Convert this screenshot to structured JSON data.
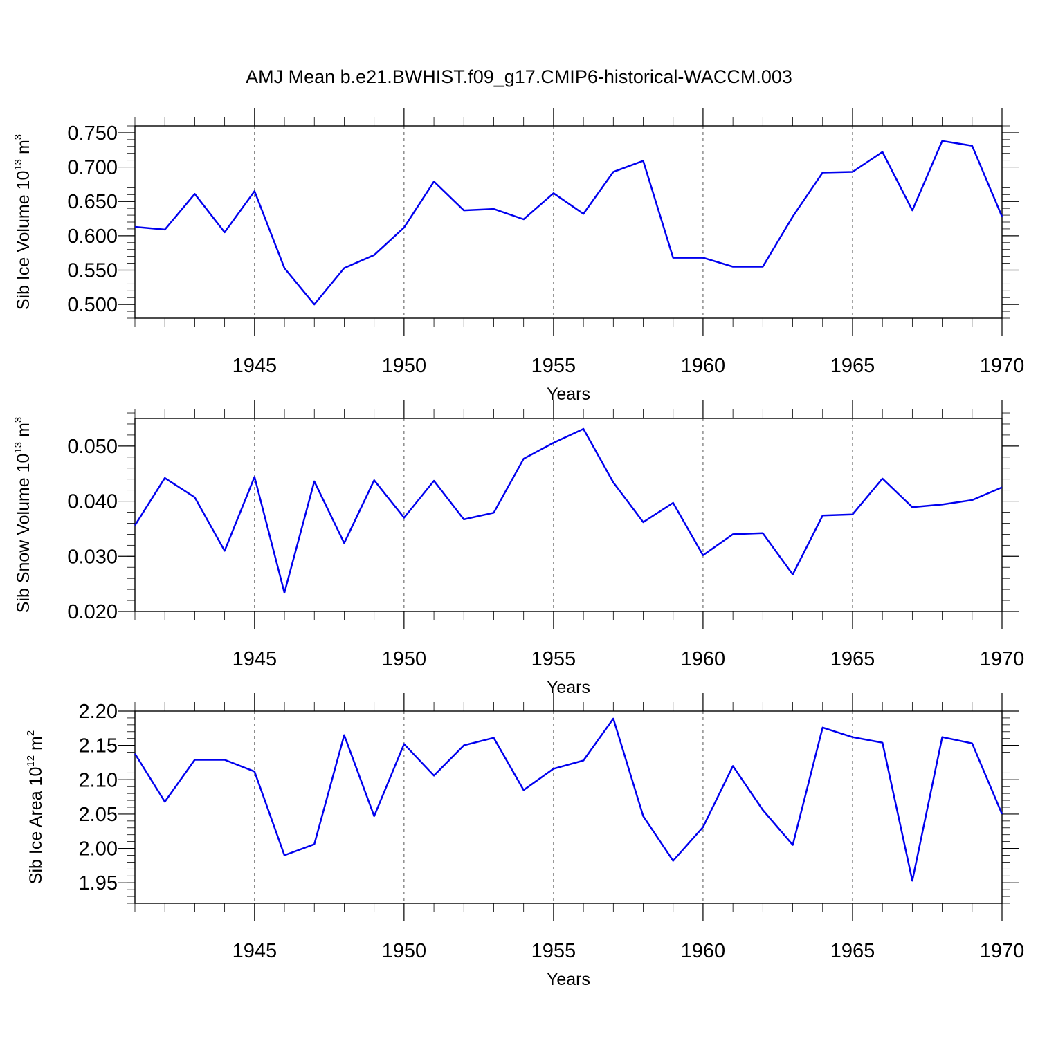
{
  "title": "AMJ Mean b.e21.BWHIST.f09_g17.CMIP6-historical-WACCM.003",
  "colors": {
    "series": "#0000ee",
    "grid": "#555555",
    "axes": "#000000"
  },
  "chart_data": [
    {
      "type": "line",
      "xlabel": "Years",
      "ylabel": {
        "text": "Sib Ice Volume 10",
        "exponent": "13",
        "unit": " m",
        "unit_exponent": "3"
      },
      "xlim": [
        1941,
        1970
      ],
      "ylim": [
        0.48,
        0.76
      ],
      "x_ticks": [
        1945,
        1950,
        1955,
        1960,
        1965,
        1970
      ],
      "x_tick_labels": [
        "1945",
        "1950",
        "1955",
        "1960",
        "1965",
        "1970"
      ],
      "y_ticks": [
        0.5,
        0.55,
        0.6,
        0.65,
        0.7,
        0.75
      ],
      "y_tick_labels": [
        "0.500",
        "0.550",
        "0.600",
        "0.650",
        "0.700",
        "0.750"
      ],
      "y_minor_step": 0.01,
      "grid": "vertical-dashed-at-major-x-ticks",
      "x": [
        1941,
        1942,
        1943,
        1944,
        1945,
        1946,
        1947,
        1948,
        1949,
        1950,
        1951,
        1952,
        1953,
        1954,
        1955,
        1956,
        1957,
        1958,
        1959,
        1960,
        1961,
        1962,
        1963,
        1964,
        1965,
        1966,
        1967,
        1968,
        1969,
        1970
      ],
      "values": [
        0.613,
        0.609,
        0.661,
        0.605,
        0.665,
        0.553,
        0.5,
        0.553,
        0.572,
        0.612,
        0.679,
        0.637,
        0.639,
        0.624,
        0.662,
        0.632,
        0.693,
        0.709,
        0.568,
        0.568,
        0.555,
        0.555,
        0.628,
        0.692,
        0.693,
        0.722,
        0.637,
        0.738,
        0.731,
        0.628
      ]
    },
    {
      "type": "line",
      "xlabel": "Years",
      "ylabel": {
        "text": "Sib Snow Volume 10",
        "exponent": "13",
        "unit": " m",
        "unit_exponent": "3"
      },
      "xlim": [
        1941,
        1970
      ],
      "ylim": [
        0.02,
        0.055
      ],
      "x_ticks": [
        1945,
        1950,
        1955,
        1960,
        1965,
        1970
      ],
      "x_tick_labels": [
        "1945",
        "1950",
        "1955",
        "1960",
        "1965",
        "1970"
      ],
      "y_ticks": [
        0.02,
        0.03,
        0.04,
        0.05
      ],
      "y_tick_labels": [
        "0.020",
        "0.030",
        "0.040",
        "0.050"
      ],
      "y_minor_step": 0.002,
      "grid": "vertical-dashed-at-major-x-ticks",
      "x": [
        1941,
        1942,
        1943,
        1944,
        1945,
        1946,
        1947,
        1948,
        1949,
        1950,
        1951,
        1952,
        1953,
        1954,
        1955,
        1956,
        1957,
        1958,
        1959,
        1960,
        1961,
        1962,
        1963,
        1964,
        1965,
        1966,
        1967,
        1968,
        1969,
        1970
      ],
      "values": [
        0.0356,
        0.0442,
        0.0407,
        0.031,
        0.0444,
        0.0234,
        0.0436,
        0.0324,
        0.0438,
        0.037,
        0.0437,
        0.0367,
        0.0379,
        0.0477,
        0.0506,
        0.0531,
        0.0434,
        0.0362,
        0.0397,
        0.0302,
        0.034,
        0.0342,
        0.0267,
        0.0374,
        0.0376,
        0.0441,
        0.0389,
        0.0394,
        0.0402,
        0.0425
      ]
    },
    {
      "type": "line",
      "xlabel": "Years",
      "ylabel": {
        "text": "Sib Ice Area 10",
        "exponent": "12",
        "unit": " m",
        "unit_exponent": "2"
      },
      "xlim": [
        1941,
        1970
      ],
      "ylim": [
        1.92,
        2.2
      ],
      "x_ticks": [
        1945,
        1950,
        1955,
        1960,
        1965,
        1970
      ],
      "x_tick_labels": [
        "1945",
        "1950",
        "1955",
        "1960",
        "1965",
        "1970"
      ],
      "y_ticks": [
        1.95,
        2.0,
        2.05,
        2.1,
        2.15,
        2.2
      ],
      "y_tick_labels": [
        "1.95",
        "2.00",
        "2.05",
        "2.10",
        "2.15",
        "2.20"
      ],
      "y_minor_step": 0.01,
      "grid": "vertical-dashed-at-major-x-ticks",
      "x": [
        1941,
        1942,
        1943,
        1944,
        1945,
        1946,
        1947,
        1948,
        1949,
        1950,
        1951,
        1952,
        1953,
        1954,
        1955,
        1956,
        1957,
        1958,
        1959,
        1960,
        1961,
        1962,
        1963,
        1964,
        1965,
        1966,
        1967,
        1968,
        1969,
        1970
      ],
      "values": [
        2.138,
        2.068,
        2.129,
        2.129,
        2.112,
        1.99,
        2.006,
        2.165,
        2.047,
        2.152,
        2.106,
        2.15,
        2.161,
        2.085,
        2.116,
        2.128,
        2.189,
        2.047,
        1.982,
        2.031,
        2.12,
        2.056,
        2.005,
        2.176,
        2.162,
        2.154,
        1.953,
        2.162,
        2.153,
        2.05
      ]
    }
  ]
}
